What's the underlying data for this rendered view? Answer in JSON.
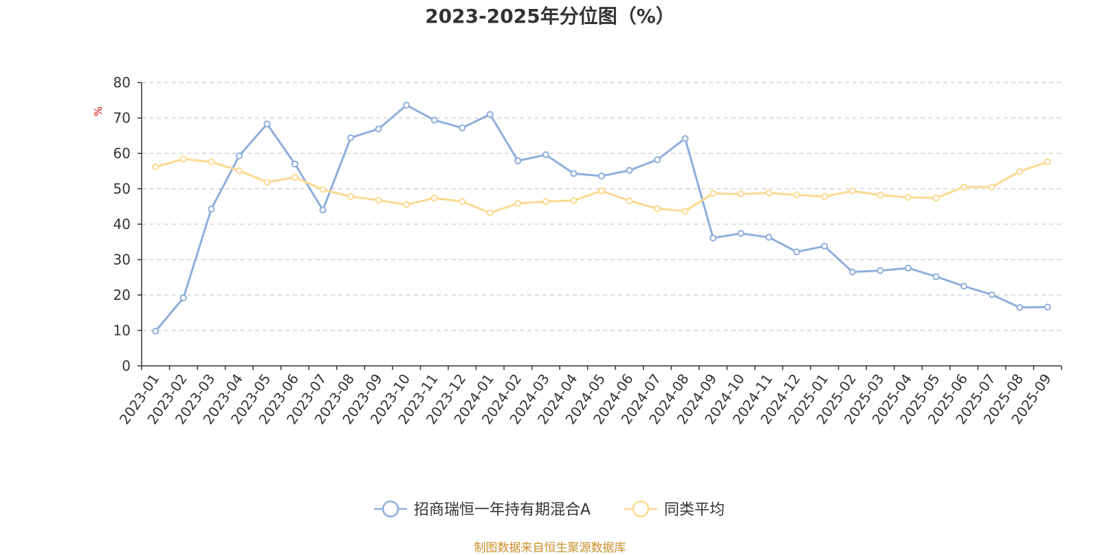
{
  "chart_data": {
    "type": "line",
    "title": "2023-2025年分位图（%）",
    "ylabel": "%",
    "xlabel": "",
    "ylim": [
      0,
      80
    ],
    "yticks": [
      0,
      10,
      20,
      30,
      40,
      50,
      60,
      70,
      80
    ],
    "grid": "horizontal dashed",
    "legend_position": "bottom",
    "categories": [
      "2023-01",
      "2023-02",
      "2023-03",
      "2023-04",
      "2023-05",
      "2023-06",
      "2023-07",
      "2023-08",
      "2023-09",
      "2023-10",
      "2023-11",
      "2023-12",
      "2024-01",
      "2024-02",
      "2024-03",
      "2024-04",
      "2024-05",
      "2024-06",
      "2024-07",
      "2024-08",
      "2024-09",
      "2024-10",
      "2024-11",
      "2024-12",
      "2025-01",
      "2025-02",
      "2025-03",
      "2025-04",
      "2025-05",
      "2025-06",
      "2025-07",
      "2025-08",
      "2025-09"
    ],
    "series": [
      {
        "name": "招商瑞恒一年持有期混合A",
        "color": "#8eaedb",
        "values": [
          9.8,
          19.2,
          44.3,
          59.3,
          68.3,
          57.0,
          44.0,
          64.4,
          66.9,
          73.6,
          69.4,
          67.2,
          71.0,
          57.9,
          59.6,
          54.3,
          53.6,
          55.2,
          58.2,
          64.2,
          36.1,
          37.4,
          36.3,
          32.2,
          33.8,
          26.5,
          26.9,
          27.6,
          25.2,
          22.5,
          20.1,
          16.5,
          16.6
        ]
      },
      {
        "name": "同类平均",
        "color": "#fbd98f",
        "values": [
          56.2,
          58.4,
          57.6,
          55.1,
          51.9,
          53.2,
          49.8,
          47.8,
          46.8,
          45.5,
          47.4,
          46.4,
          43.2,
          45.9,
          46.4,
          46.7,
          49.4,
          46.6,
          44.4,
          43.7,
          48.7,
          48.5,
          48.8,
          48.3,
          47.8,
          49.4,
          48.2,
          47.6,
          47.4,
          50.5,
          50.5,
          54.9,
          57.6
        ]
      }
    ]
  },
  "footer": {
    "source": "制图数据来自恒生聚源数据库"
  },
  "colors": {
    "title": "#333333",
    "ylabel": "#e00000",
    "grid": "#cccccc",
    "source": "#c8902a"
  }
}
